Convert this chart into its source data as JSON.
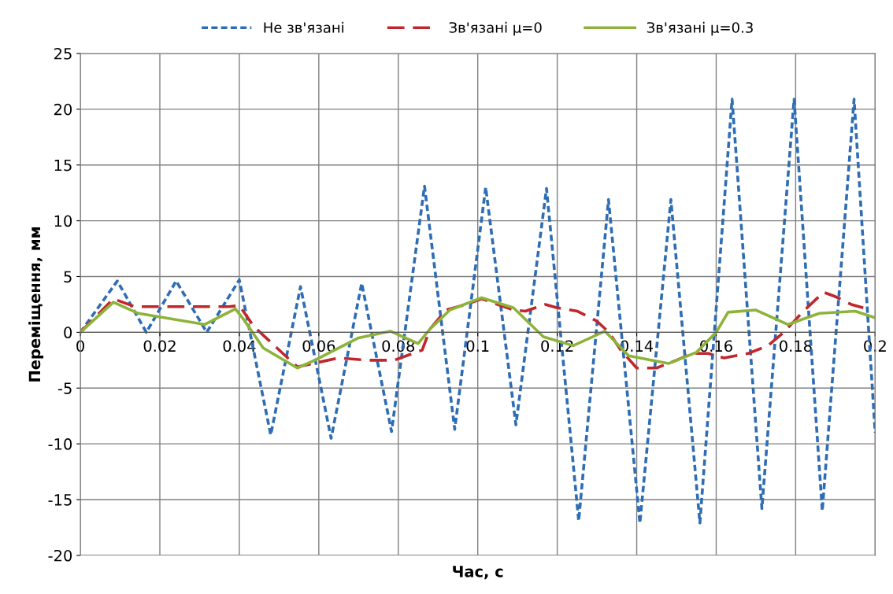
{
  "chart_data": {
    "type": "line",
    "xlabel": "Час, с",
    "ylabel": "Переміщення, мм",
    "xlim": [
      0,
      0.2
    ],
    "xticks": [
      0,
      0.02,
      0.04,
      0.06,
      0.08,
      0.1,
      0.12,
      0.14,
      0.16,
      0.18,
      0.2
    ],
    "ylim": [
      -20,
      25
    ],
    "yticks": [
      -20,
      -15,
      -10,
      -5,
      0,
      5,
      10,
      15,
      20,
      25
    ],
    "grid": true,
    "legend": "top",
    "marker": "none",
    "series": [
      {
        "name": "Не зв'язані",
        "color": "#2e6db4",
        "line_style": "dotted",
        "x": [
          0,
          0.0093,
          0.0166,
          0.0241,
          0.0318,
          0.04,
          0.0479,
          0.0554,
          0.0631,
          0.0708,
          0.0783,
          0.0866,
          0.0942,
          0.102,
          0.1096,
          0.1173,
          0.1254,
          0.1329,
          0.1408,
          0.1486,
          0.1559,
          0.164,
          0.1715,
          0.1796,
          0.1867,
          0.1947,
          0.2
        ],
        "values": [
          0,
          4.6,
          0,
          4.6,
          0,
          4.7,
          -9.2,
          4.1,
          -9.5,
          4.4,
          -8.9,
          13.1,
          -8.7,
          13.0,
          -8.3,
          12.9,
          -16.9,
          11.9,
          -17.1,
          11.9,
          -17.1,
          20.9,
          -15.8,
          20.9,
          -16.0,
          20.9,
          -9.0
        ]
      },
      {
        "name": "Зв'язані μ=0",
        "color": "#c0272d",
        "line_style": "dashed",
        "x": [
          0,
          0.0083,
          0.0137,
          0.0374,
          0.04,
          0.0437,
          0.0546,
          0.065,
          0.072,
          0.079,
          0.086,
          0.088,
          0.092,
          0.097,
          0.101,
          0.109,
          0.112,
          0.117,
          0.12,
          0.125,
          0.13,
          0.133,
          0.136,
          0.14,
          0.145,
          0.15,
          0.154,
          0.158,
          0.162,
          0.168,
          0.173,
          0.177,
          0.182,
          0.187,
          0.19,
          0.194,
          0.197
        ],
        "values": [
          0,
          3.0,
          2.3,
          2.3,
          2.4,
          0.5,
          -3.1,
          -2.3,
          -2.5,
          -2.5,
          -1.6,
          0.3,
          2.0,
          2.5,
          3.0,
          2.0,
          1.9,
          2.5,
          2.2,
          1.9,
          1.0,
          0,
          -1.6,
          -3.2,
          -3.2,
          -2.5,
          -1.9,
          -1.9,
          -2.3,
          -1.9,
          -1.2,
          0,
          1.9,
          3.6,
          3.2,
          2.5,
          2.2
        ]
      },
      {
        "name": "Зв'язані μ=0.3",
        "color": "#8db33a",
        "line_style": "solid",
        "x": [
          0,
          0.0083,
          0.0146,
          0.0196,
          0.0313,
          0.039,
          0.041,
          0.046,
          0.0546,
          0.059,
          0.07,
          0.078,
          0.085,
          0.088,
          0.093,
          0.101,
          0.109,
          0.1165,
          0.124,
          0.132,
          0.138,
          0.148,
          0.155,
          0.16,
          0.163,
          0.17,
          0.178,
          0.186,
          0.195,
          0.2
        ],
        "values": [
          0,
          2.7,
          1.7,
          1.4,
          0.7,
          2.1,
          1.2,
          -1.4,
          -3.2,
          -2.5,
          -0.5,
          0.1,
          -1.0,
          0.3,
          2.0,
          3.1,
          2.2,
          -0.4,
          -1.2,
          0.1,
          -2.1,
          -2.8,
          -1.8,
          0,
          1.8,
          2.0,
          0.7,
          1.7,
          1.9,
          1.3
        ]
      }
    ]
  }
}
